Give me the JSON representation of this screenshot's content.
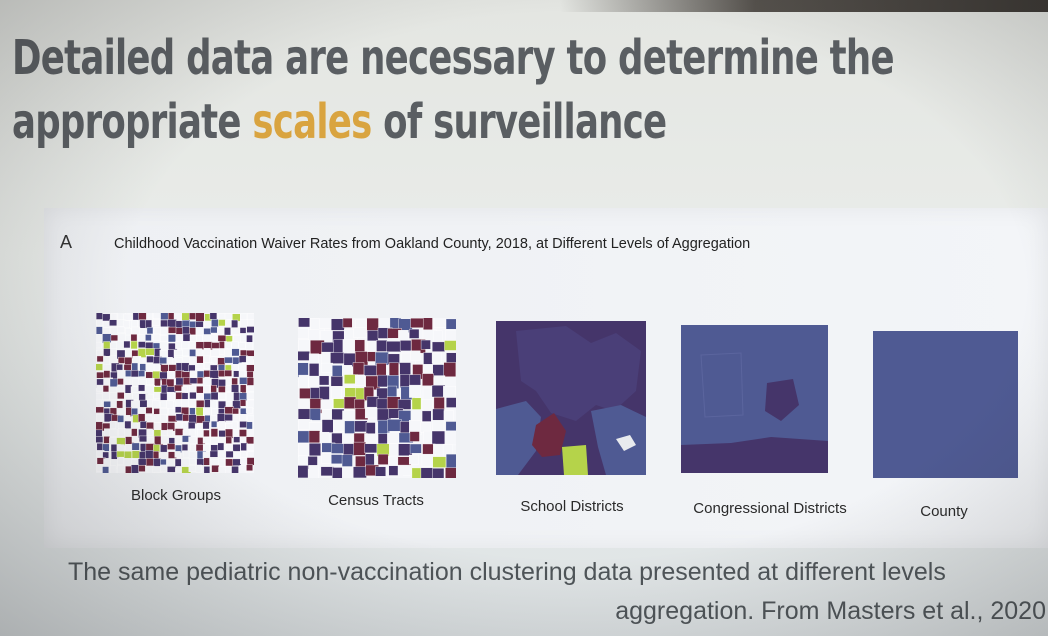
{
  "slide": {
    "title_line1": "Detailed data are necessary to determine the",
    "title_line2_before": "appropriate ",
    "title_line2_highlight": "scales",
    "title_line2_after": " of surveillance",
    "highlight_color": "#d9a440"
  },
  "figure": {
    "panel_letter": "A",
    "heading": "Childhood Vaccination Waiver Rates from Oakland County, 2018, at Different Levels of Aggregation",
    "palette": {
      "dark_purple": "#45356a",
      "mid_blue": "#4f5a93",
      "maroon": "#6e2940",
      "light_green": "#b5d34a",
      "background": "#f3f5f8"
    },
    "maps": [
      {
        "label": "Block Groups"
      },
      {
        "label": "Census Tracts"
      },
      {
        "label": "School Districts"
      },
      {
        "label": "Congressional Districts"
      },
      {
        "label": "County"
      }
    ]
  },
  "caption": {
    "line1": "The same pediatric non-vaccination clustering data presented at different levels",
    "line2": "aggregation. From Masters et al., 2020"
  }
}
